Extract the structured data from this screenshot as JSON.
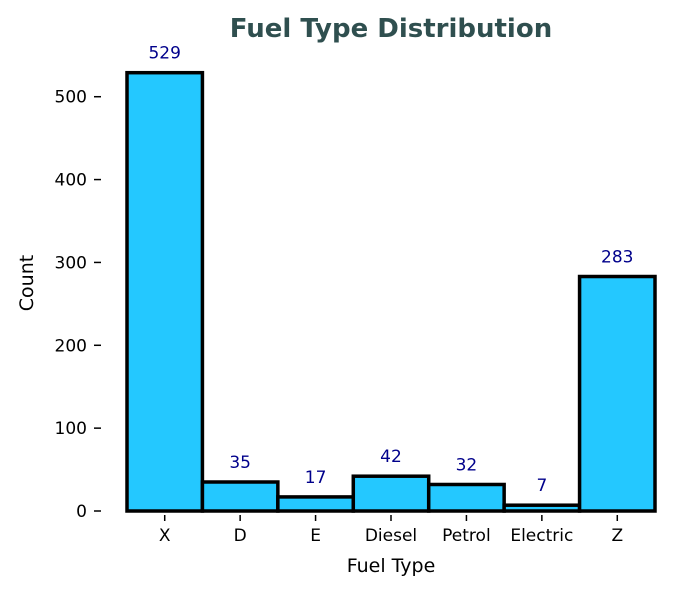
{
  "chart_data": {
    "type": "bar",
    "title": "Fuel Type Distribution",
    "xlabel": "Fuel Type",
    "ylabel": "Count",
    "categories": [
      "X",
      "D",
      "E",
      "Diesel",
      "Petrol",
      "Electric",
      "Z"
    ],
    "values": [
      529,
      35,
      17,
      42,
      32,
      7,
      283
    ],
    "value_labels": [
      "529",
      "35",
      "17",
      "42",
      "32",
      "7",
      "283"
    ],
    "ylim": [
      0,
      560
    ],
    "y_ticks": [
      0,
      100,
      200,
      300,
      400,
      500
    ],
    "y_tick_labels": [
      "0",
      "100",
      "200",
      "300",
      "400",
      "500"
    ],
    "grid": false,
    "legend": "none",
    "colors": {
      "bar_fill": "#24C8FF",
      "bar_edge": "#000000",
      "value_label": "#00008B",
      "title": "#2F4F4F",
      "axis_text": "#000000"
    }
  }
}
